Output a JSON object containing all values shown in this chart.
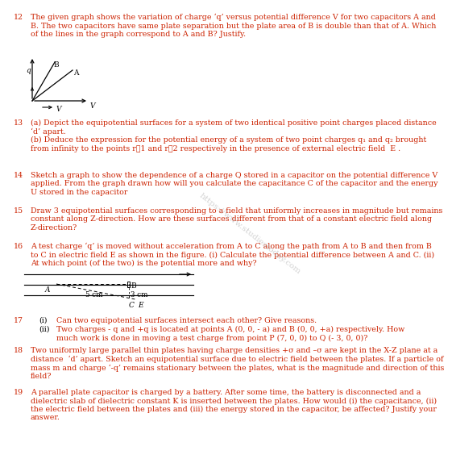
{
  "bg_color": "#ffffff",
  "text_color": "#000000",
  "red_color": "#cc2200",
  "watermark_color": "#c8c8c8",
  "q12_num": "12",
  "q12_text": "The given graph shows the variation of charge ‘q’ versus potential difference V for two capacitors A and\nB. The two capacitors have same plate separation but the plate area of B is double than that of A. Which\nof the lines in the graph correspond to A and B? Justify.",
  "q13_num": "13",
  "q13_text": "(a) Depict the equipotential surfaces for a system of two identical positive point charges placed distance\n‘d’ apart.\n(b) Deduce the expression for the potential energy of a system of two point charges q₁ and q₂ brought\nfrom infinity to the points r⃗1 and r⃗2 respectively in the presence of external electric field  E .",
  "q14_num": "14",
  "q14_text": "Sketch a graph to show the dependence of a charge Q stored in a capacitor on the potential difference V\napplied. From the graph drawn how will you calculate the capacitance C of the capacitor and the energy\nU stored in the capacitor",
  "q15_num": "15",
  "q15_text": "Draw 3 equipotential surfaces corresponding to a field that uniformly increases in magnitude but remains\nconstant along Z-direction. How are these surfaces different from that of a constant electric field along\nZ-direction?",
  "q16_num": "16",
  "q16_text": "A test charge ‘q’ is moved without acceleration from A to C along the path from A to B and then from B\nto C in electric field E as shown in the figure. (i) Calculate the potential difference between A and C. (ii)\nAt which point (of the two) is the potential more and why?",
  "q17_num": "17",
  "q17_i": "(i)",
  "q17_i_text": "Can two equipotential surfaces intersect each other? Give reasons.",
  "q17_ii": "(ii)",
  "q17_ii_text": "Two charges - q and +q is located at points A (0, 0, - a) and B (0, 0, +a) respectively. How\nmuch work is done in moving a test charge from point P (7, 0, 0) to Q (- 3, 0, 0)?",
  "q18_num": "18",
  "q18_text": "Two uniformly large parallel thin plates having charge densities +σ and –σ are kept in the X-Z plane at a\ndistance  ‘d’ apart. Sketch an equipotential surface due to electric field between the plates. If a particle of\nmass m and charge ‘-q’ remains stationary between the plates, what is the magnitude and direction of this\nfield?",
  "q19_num": "19",
  "q19_text": "A parallel plate capacitor is charged by a battery. After some time, the battery is disconnected and a\ndielectric slab of dielectric constant K is inserted between the plates. How would (i) the capacitance, (ii)\nthe electric field between the plates and (iii) the energy stored in the capacitor, be affected? Justify your\nanswer.",
  "watermark_text": "https://www.studiestoday.com"
}
